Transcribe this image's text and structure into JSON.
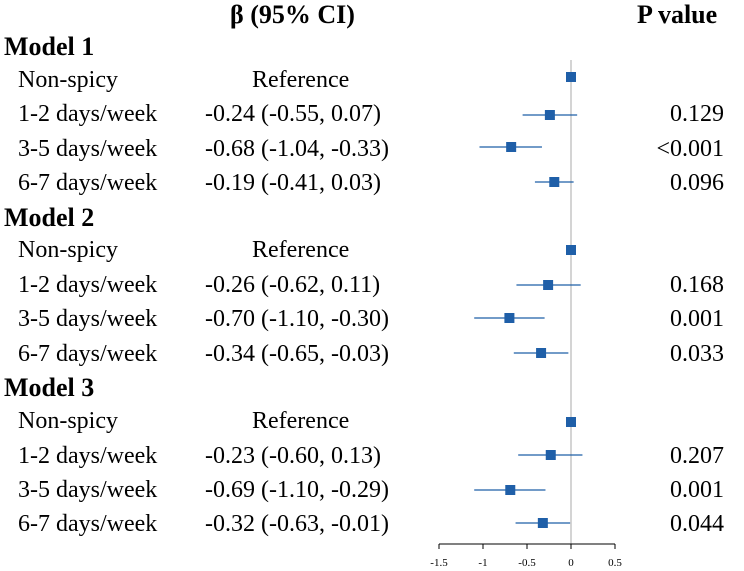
{
  "headers": {
    "beta": "β (95% CI)",
    "pvalue": "P value"
  },
  "colors": {
    "marker": "#1f5fa8",
    "ref_line": "#aaaaaa",
    "axis": "#000000"
  },
  "chart_data": {
    "type": "forest",
    "title": "",
    "xlabel": "",
    "xlim": [
      -1.5,
      0.5
    ],
    "xticks": [
      -1.5,
      -1,
      -0.5,
      0,
      0.5
    ],
    "reference_line": 0,
    "models": [
      {
        "name": "Model 1",
        "rows": [
          {
            "label": "Non-spicy",
            "ci_text": "Reference",
            "estimate": 0,
            "lower": null,
            "upper": null,
            "p": ""
          },
          {
            "label": "1-2 days/week",
            "ci_text": "-0.24 (-0.55, 0.07)",
            "estimate": -0.24,
            "lower": -0.55,
            "upper": 0.07,
            "p": "0.129"
          },
          {
            "label": "3-5 days/week",
            "ci_text": "-0.68 (-1.04, -0.33)",
            "estimate": -0.68,
            "lower": -1.04,
            "upper": -0.33,
            "p": "<0.001"
          },
          {
            "label": "6-7 days/week",
            "ci_text": "-0.19 (-0.41, 0.03)",
            "estimate": -0.19,
            "lower": -0.41,
            "upper": 0.03,
            "p": "0.096"
          }
        ]
      },
      {
        "name": "Model 2",
        "rows": [
          {
            "label": "Non-spicy",
            "ci_text": "Reference",
            "estimate": 0,
            "lower": null,
            "upper": null,
            "p": ""
          },
          {
            "label": "1-2 days/week",
            "ci_text": "-0.26 (-0.62, 0.11)",
            "estimate": -0.26,
            "lower": -0.62,
            "upper": 0.11,
            "p": "0.168"
          },
          {
            "label": "3-5 days/week",
            "ci_text": "-0.70 (-1.10, -0.30)",
            "estimate": -0.7,
            "lower": -1.1,
            "upper": -0.3,
            "p": "0.001"
          },
          {
            "label": "6-7 days/week",
            "ci_text": "-0.34 (-0.65, -0.03)",
            "estimate": -0.34,
            "lower": -0.65,
            "upper": -0.03,
            "p": "0.033"
          }
        ]
      },
      {
        "name": "Model 3",
        "rows": [
          {
            "label": "Non-spicy",
            "ci_text": "Reference",
            "estimate": 0,
            "lower": null,
            "upper": null,
            "p": ""
          },
          {
            "label": "1-2 days/week",
            "ci_text": "-0.23 (-0.60, 0.13)",
            "estimate": -0.23,
            "lower": -0.6,
            "upper": 0.13,
            "p": "0.207"
          },
          {
            "label": "3-5 days/week",
            "ci_text": "-0.69 (-1.10, -0.29)",
            "estimate": -0.69,
            "lower": -1.1,
            "upper": -0.29,
            "p": "0.001"
          },
          {
            "label": "6-7 days/week",
            "ci_text": "-0.32 (-0.63, -0.01)",
            "estimate": -0.32,
            "lower": -0.63,
            "upper": -0.01,
            "p": "0.044"
          }
        ]
      }
    ]
  }
}
